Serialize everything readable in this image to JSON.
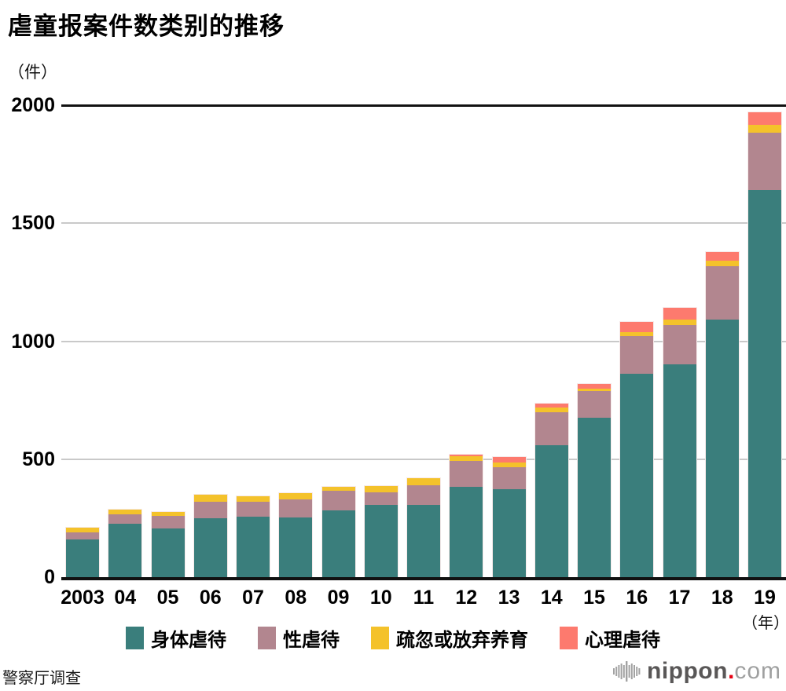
{
  "title": "虐童报案件数类别的推移",
  "unit_label": "（件）",
  "year_axis_label": "（年）",
  "source": "警察厅调查",
  "logo": {
    "name": "nippon",
    "dot": ".",
    "tld": "com",
    "name_color": "#595757",
    "dot_color": "#e60012",
    "tld_color": "#9fa0a0",
    "icon": "equalizer-bars-icon"
  },
  "colors": {
    "physical": "#3a7e7c",
    "sexual": "#b2868f",
    "neglect": "#f4c22b",
    "psychological": "#fd7a6e",
    "grid_major": "#111111",
    "grid_minor": "#c9c9c9"
  },
  "chart_data": {
    "type": "bar",
    "stacked": true,
    "title": "虐童报案件数类别的推移",
    "ylabel": "（件）",
    "xlabel": "（年）",
    "ylim": [
      0,
      2000
    ],
    "yticks": [
      0,
      500,
      1000,
      1500,
      2000
    ],
    "grid": true,
    "legend_position": "bottom",
    "categories": [
      "2003",
      "04",
      "05",
      "06",
      "07",
      "08",
      "09",
      "10",
      "11",
      "12",
      "13",
      "14",
      "15",
      "16",
      "17",
      "18",
      "19"
    ],
    "series": [
      {
        "name": "身体虐待",
        "color": "#3a7e7c",
        "values": [
          161,
          228,
          206,
          251,
          256,
          254,
          284,
          305,
          307,
          383,
          372,
          560,
          675,
          862,
          902,
          1093,
          1640
        ]
      },
      {
        "name": "性虐待",
        "color": "#b2868f",
        "values": [
          28,
          39,
          54,
          70,
          65,
          75,
          82,
          56,
          81,
          111,
          94,
          139,
          113,
          159,
          167,
          225,
          244
        ]
      },
      {
        "name": "疏忽或放弃养育",
        "color": "#f4c22b",
        "values": [
          20,
          19,
          17,
          28,
          22,
          27,
          17,
          24,
          30,
          18,
          19,
          20,
          11,
          19,
          21,
          24,
          33
        ]
      },
      {
        "name": "心理虐待",
        "color": "#fd7a6e",
        "values": [
          0,
          0,
          0,
          0,
          0,
          0,
          0,
          0,
          0,
          7,
          25,
          17,
          20,
          42,
          53,
          35,
          53
        ]
      }
    ],
    "totals": [
      209,
      286,
      277,
      349,
      343,
      356,
      383,
      385,
      418,
      519,
      510,
      736,
      819,
      1082,
      1143,
      1377,
      1970
    ]
  }
}
